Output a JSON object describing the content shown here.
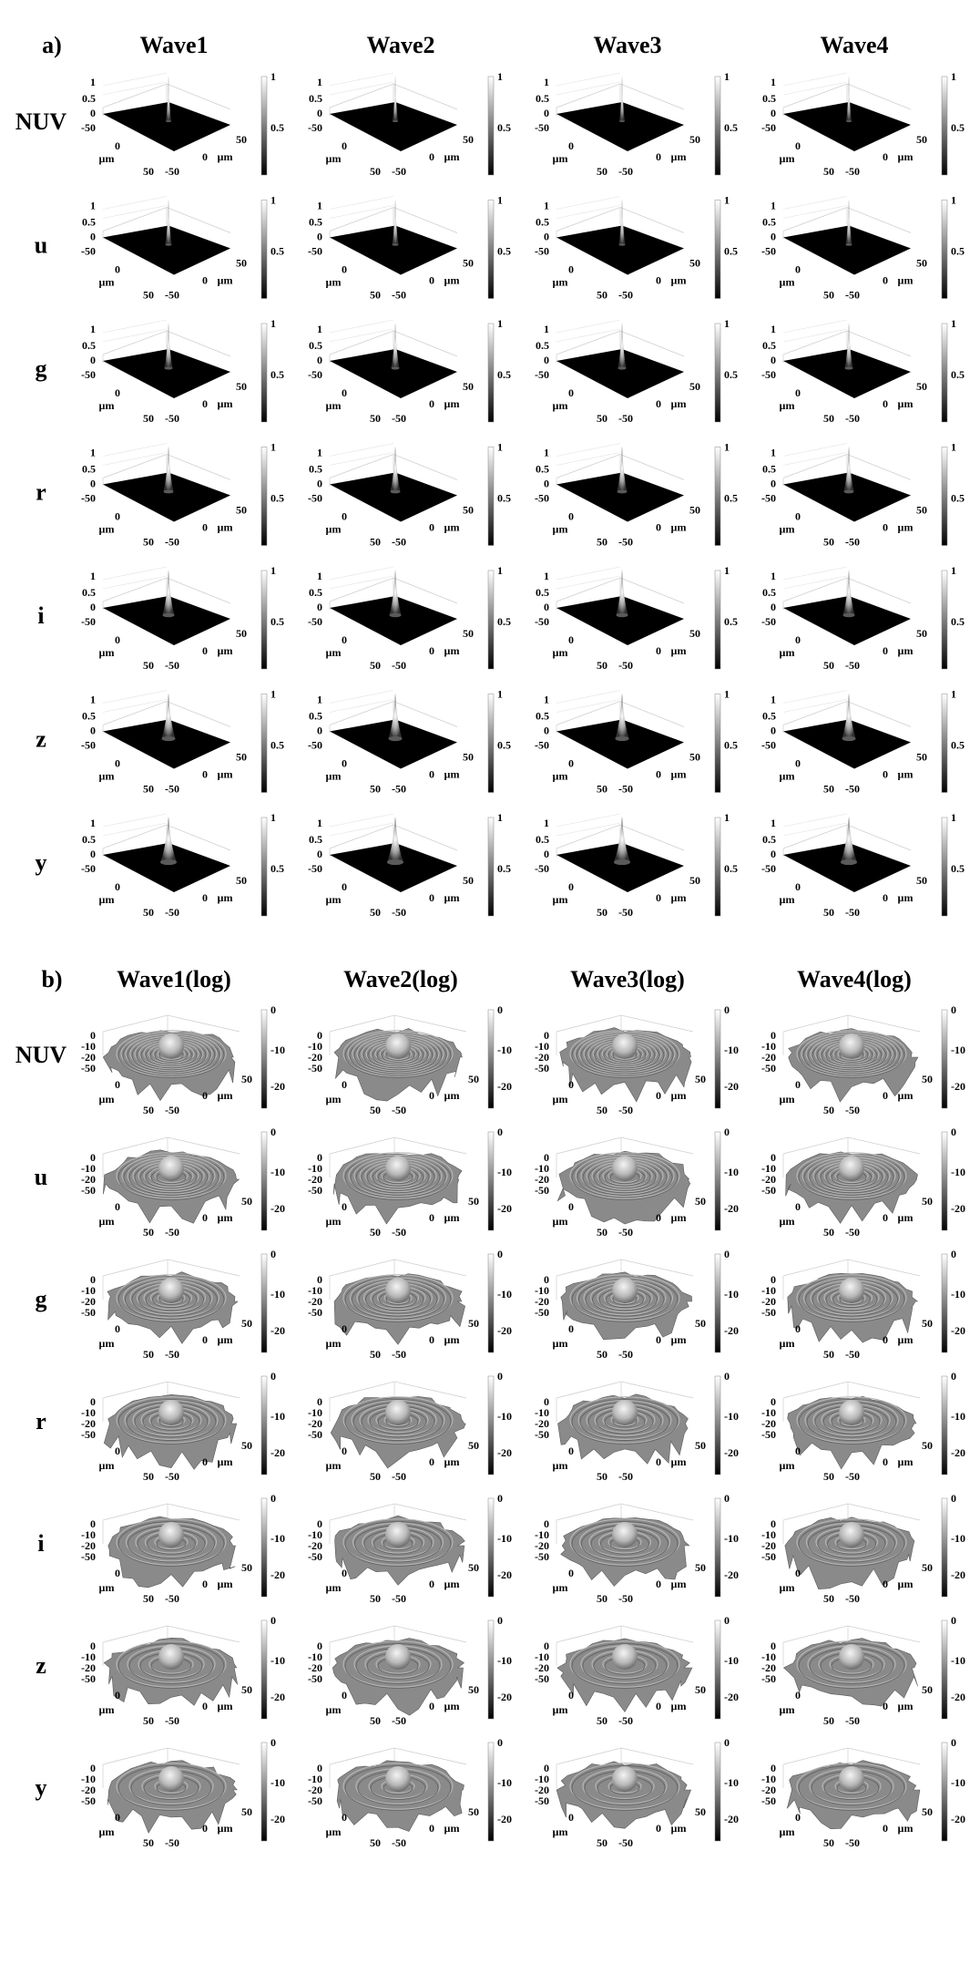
{
  "panels": [
    {
      "label": "a)",
      "columns": [
        "Wave1",
        "Wave2",
        "Wave3",
        "Wave4"
      ],
      "rows": [
        "NUV",
        "u",
        "g",
        "r",
        "i",
        "z",
        "y"
      ],
      "z_ticks": [
        "1",
        "0.5",
        "0"
      ],
      "colorbar_ticks": [
        "1",
        "0.5"
      ],
      "axis_ticks": [
        "-50",
        "0",
        "50"
      ],
      "axis_unit": "µm",
      "mode": "linear"
    },
    {
      "label": "b)",
      "columns": [
        "Wave1(log)",
        "Wave2(log)",
        "Wave3(log)",
        "Wave4(log)"
      ],
      "rows": [
        "NUV",
        "u",
        "g",
        "r",
        "i",
        "z",
        "y"
      ],
      "z_ticks": [
        "0",
        "-10",
        "-20"
      ],
      "colorbar_ticks": [
        "0",
        "-10",
        "-20"
      ],
      "axis_ticks": [
        "-50",
        "0",
        "50"
      ],
      "axis_unit": "µm",
      "mode": "log"
    }
  ],
  "chart_data": [
    {
      "type": "heatmap",
      "title": "a)",
      "subtype": "3D surface grid",
      "columns": [
        "Wave1",
        "Wave2",
        "Wave3",
        "Wave4"
      ],
      "rows": [
        "NUV",
        "u",
        "g",
        "r",
        "i",
        "z",
        "y"
      ],
      "x_range": [
        -50,
        50
      ],
      "y_range": [
        -50,
        50
      ],
      "z_range": [
        0,
        1
      ],
      "colorbar_range": [
        0,
        1
      ],
      "xlabel": "µm",
      "ylabel": "µm",
      "peak_width_by_row": [
        3,
        3.5,
        4.5,
        5.5,
        6.5,
        7.5,
        9
      ]
    },
    {
      "type": "heatmap",
      "title": "b)",
      "subtype": "3D surface grid (log scale)",
      "columns": [
        "Wave1(log)",
        "Wave2(log)",
        "Wave3(log)",
        "Wave4(log)"
      ],
      "rows": [
        "NUV",
        "u",
        "g",
        "r",
        "i",
        "z",
        "y"
      ],
      "x_range": [
        -50,
        50
      ],
      "y_range": [
        -50,
        50
      ],
      "z_range": [
        -25,
        0
      ],
      "colorbar_range": [
        -25,
        0
      ],
      "xlabel": "µm",
      "ylabel": "µm",
      "ring_spacing_by_row": [
        5,
        6,
        7.5,
        9,
        10.5,
        12,
        14
      ]
    }
  ]
}
